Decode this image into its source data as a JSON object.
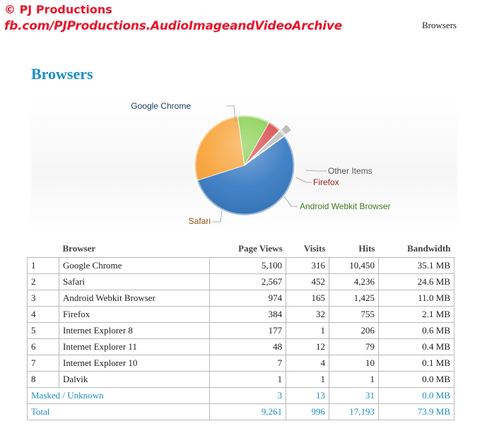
{
  "watermark": {
    "line1": "© PJ Productions",
    "line2": "fb.com/PJProductions.AudioImageandVideoArchive"
  },
  "header": {
    "right_title": "Browsers"
  },
  "page": {
    "title": "Browsers"
  },
  "chart_data": {
    "type": "pie",
    "title": "",
    "slices": [
      {
        "label": "Google Chrome",
        "value": 5100,
        "color": "#3a7cc4"
      },
      {
        "label": "Safari",
        "value": 2567,
        "color": "#f8a43a"
      },
      {
        "label": "Android Webkit Browser",
        "value": 974,
        "color": "#86cf4e"
      },
      {
        "label": "Firefox",
        "value": 384,
        "color": "#d94a4a"
      },
      {
        "label": "Other Items",
        "value": 236,
        "color": "#bdbdbd"
      }
    ],
    "label_colors": {
      "Google Chrome": "#1f3d66",
      "Safari": "#8a5410",
      "Android Webkit Browser": "#3e7a1e",
      "Firefox": "#a12020",
      "Other Items": "#555555"
    }
  },
  "table": {
    "headers": {
      "index": "",
      "browser": "Browser",
      "page_views": "Page Views",
      "visits": "Visits",
      "hits": "Hits",
      "bandwidth": "Bandwidth"
    },
    "rows": [
      {
        "index": "1",
        "browser": "Google Chrome",
        "page_views": "5,100",
        "visits": "316",
        "hits": "10,450",
        "bandwidth": "35.1 MB"
      },
      {
        "index": "2",
        "browser": "Safari",
        "page_views": "2,567",
        "visits": "452",
        "hits": "4,236",
        "bandwidth": "24.6 MB"
      },
      {
        "index": "3",
        "browser": "Android Webkit Browser",
        "page_views": "974",
        "visits": "165",
        "hits": "1,425",
        "bandwidth": "11.0 MB"
      },
      {
        "index": "4",
        "browser": "Firefox",
        "page_views": "384",
        "visits": "32",
        "hits": "755",
        "bandwidth": "2.1 MB"
      },
      {
        "index": "5",
        "browser": "Internet Explorer 8",
        "page_views": "177",
        "visits": "1",
        "hits": "206",
        "bandwidth": "0.6 MB"
      },
      {
        "index": "6",
        "browser": "Internet Explorer 11",
        "page_views": "48",
        "visits": "12",
        "hits": "79",
        "bandwidth": "0.4 MB"
      },
      {
        "index": "7",
        "browser": "Internet Explorer 10",
        "page_views": "7",
        "visits": "4",
        "hits": "10",
        "bandwidth": "0.1 MB"
      },
      {
        "index": "8",
        "browser": "Dalvik",
        "page_views": "1",
        "visits": "1",
        "hits": "1",
        "bandwidth": "0.0 MB"
      }
    ],
    "masked": {
      "label": "Masked / Unknown",
      "page_views": "3",
      "visits": "13",
      "hits": "31",
      "bandwidth": "0.0 MB"
    },
    "total": {
      "label": "Total",
      "page_views": "9,261",
      "visits": "996",
      "hits": "17,193",
      "bandwidth": "73.9 MB"
    }
  },
  "colors": {
    "title_accent": "#1d8ec8",
    "watermark": "#e8142a"
  }
}
